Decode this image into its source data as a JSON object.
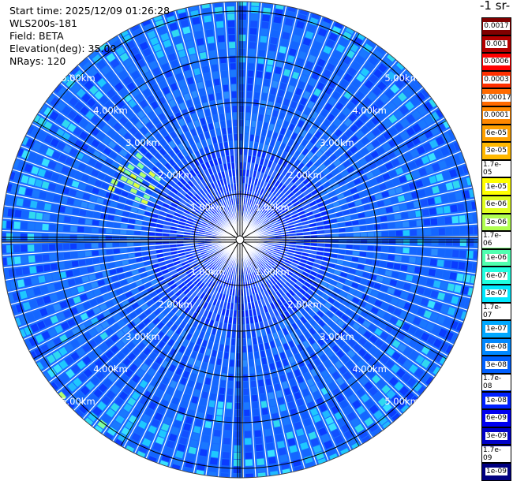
{
  "info": {
    "start_time": "Start time: 2025/12/09 01:26:28",
    "instrument": "WLS200s-181",
    "field": "Field: BETA",
    "elevation": "Elevation(deg): 35.00",
    "nrays": "NRays: 120"
  },
  "chart_data": {
    "type": "heatmap",
    "projection": "polar (PPI scan)",
    "nrays": 120,
    "range_ring_labels": [
      "1.00km",
      "2.00km",
      "3.00km",
      "4.00km",
      "5.00km"
    ],
    "range_rings_km": [
      1,
      2,
      3,
      4,
      5
    ],
    "colorbar": {
      "title": "-1 sr-",
      "ticks": [
        "0.0017",
        "0.001",
        "0.0006",
        "0.0003",
        "0.00017",
        "0.0001",
        "6e-05",
        "3e-05",
        "1.7e-05",
        "1e-05",
        "6e-06",
        "3e-06",
        "1.7e-06",
        "1e-06",
        "6e-07",
        "3e-07",
        "1.7e-07",
        "1e-07",
        "6e-08",
        "3e-08",
        "1.7e-08",
        "1e-08",
        "6e-09",
        "3e-09",
        "1.7e-09",
        "1e-09"
      ],
      "colors": [
        "#800000",
        "#b40000",
        "#ff0000",
        "#ff3000",
        "#ff6a00",
        "#ff8800",
        "#ffa000",
        "#ffb800",
        "#ffd000",
        "#ffff00",
        "#e0ff20",
        "#b0ff50",
        "#80ff80",
        "#50ffb0",
        "#20ffe0",
        "#00e8ff",
        "#00c8ff",
        "#00a8ff",
        "#0088ff",
        "#0060ff",
        "#0040ff",
        "#0020ff",
        "#0000f0",
        "#0000c8",
        "#0000a0",
        "#000080"
      ]
    }
  }
}
